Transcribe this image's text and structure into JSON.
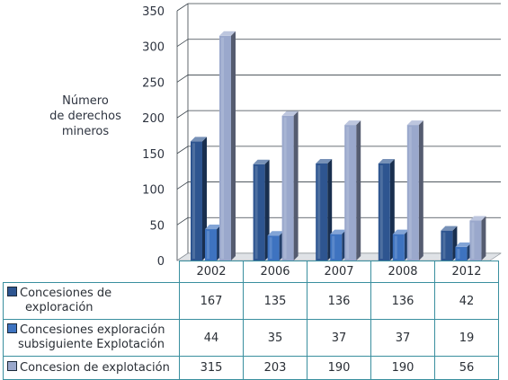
{
  "chart_data": {
    "type": "bar",
    "ylabel": "Número\nde derechos\nmineros",
    "ylim": [
      0,
      350
    ],
    "yticks": [
      0,
      50,
      100,
      150,
      200,
      250,
      300,
      350
    ],
    "categories": [
      "2002",
      "2006",
      "2007",
      "2008",
      "2012"
    ],
    "series": [
      {
        "name": "Concesiones de exploración",
        "name_lines": [
          "Concesiones de",
          "exploración"
        ],
        "values": [
          167,
          135,
          136,
          136,
          42
        ],
        "color": "#2e5590"
      },
      {
        "name": "Concesiones exploración subsiguiente Explotación",
        "name_lines": [
          "Concesiones exploración",
          "subsiguiente Explotación"
        ],
        "values": [
          44,
          35,
          37,
          37,
          19
        ],
        "color": "#3e73c0"
      },
      {
        "name": "Concesion de explotación",
        "name_lines": [
          "Concesion de explotación"
        ],
        "values": [
          315,
          203,
          190,
          190,
          56
        ],
        "color": "#9aa8cc"
      }
    ],
    "grid": true,
    "legend": "data table below chart"
  }
}
